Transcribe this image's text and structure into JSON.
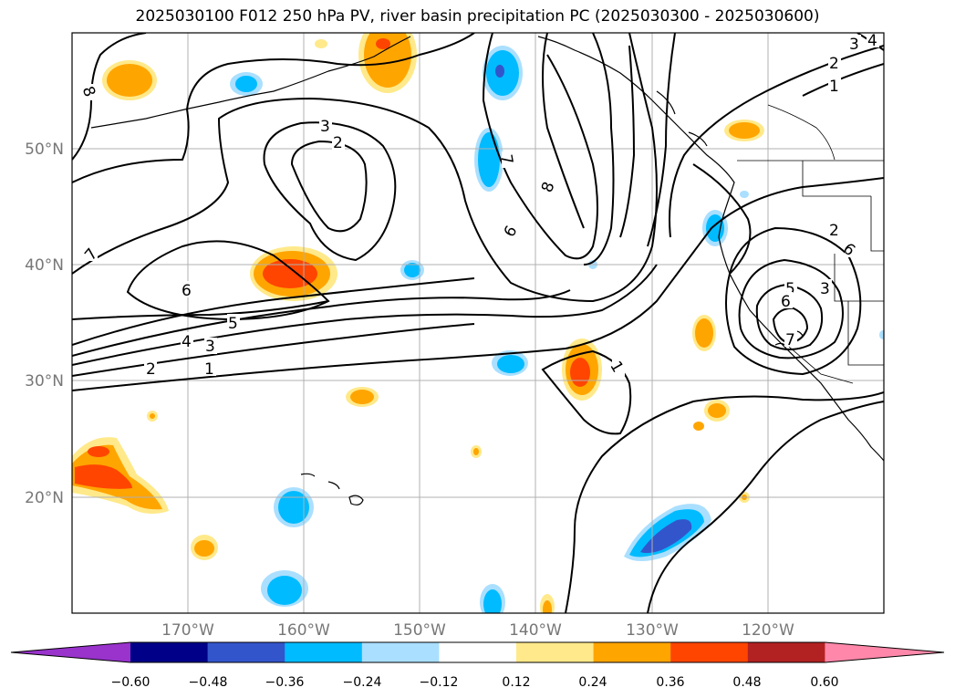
{
  "title": "2025030100 F012 250 hPa PV, river basin precipitation PC (2025030300 - 2025030600)",
  "map": {
    "lon_labels": [
      "170°W",
      "160°W",
      "150°W",
      "140°W",
      "130°W",
      "120°W"
    ],
    "lat_labels": [
      "50°N",
      "40°N",
      "30°N",
      "20°N"
    ],
    "contour_labels": [
      "1",
      "2",
      "3",
      "4",
      "5",
      "6",
      "7",
      "8",
      "3",
      "2",
      "6",
      "7",
      "8",
      "6",
      "7",
      "1",
      "1",
      "2",
      "3",
      "4",
      "3",
      "5",
      "6",
      "7",
      "3",
      "4",
      "2",
      "1",
      "2",
      "3",
      "6",
      "7"
    ]
  },
  "colorbar": {
    "ticks": [
      "−0.60",
      "−0.48",
      "−0.36",
      "−0.24",
      "−0.12",
      "0.12",
      "0.24",
      "0.36",
      "0.48",
      "0.60"
    ],
    "colors": [
      "#9933cc",
      "#000088",
      "#3355cc",
      "#00bbff",
      "#aadfff",
      "#ffffff",
      "#ffe98a",
      "#ffa500",
      "#ff4500",
      "#b22222",
      "#ff88aa"
    ]
  }
}
